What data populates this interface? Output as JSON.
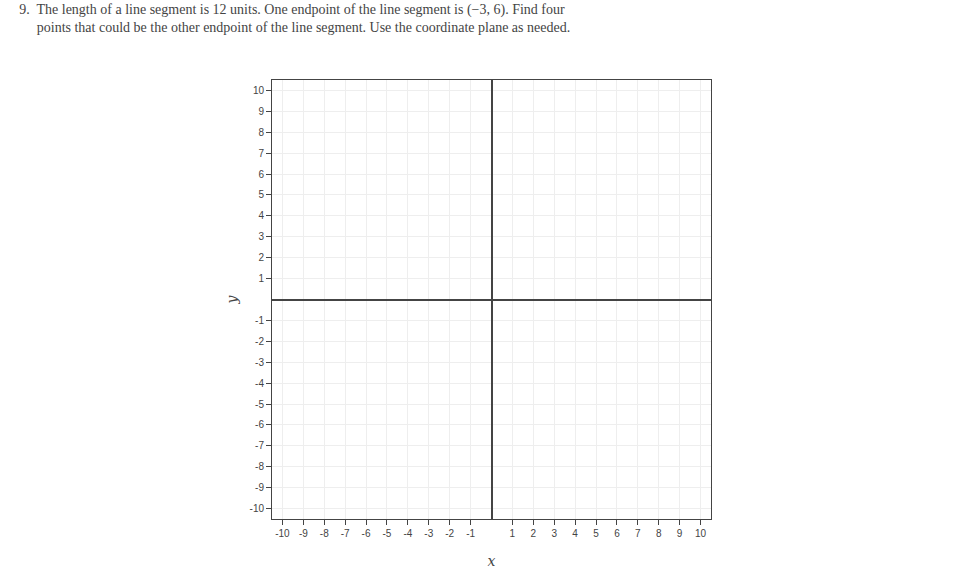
{
  "chart_data": {
    "type": "scatter",
    "title": "9.  The length of a line segment is 12 units. One endpoint of the line segment is (−3, 6). Find four\n     points that could be the other endpoint of the line segment. Use the coordinate plane as needed.",
    "xlabel": "x",
    "ylabel": "y",
    "series": [],
    "xlim": [
      -10.5,
      10.5
    ],
    "ylim": [
      -10.5,
      10.5
    ],
    "xticks": [
      -10,
      -9,
      -8,
      -7,
      -6,
      -5,
      -4,
      -3,
      -2,
      -1,
      1,
      2,
      3,
      4,
      5,
      6,
      7,
      8,
      9,
      10
    ],
    "yticks": [
      -10,
      -9,
      -8,
      -7,
      -6,
      -5,
      -4,
      -3,
      -2,
      -1,
      1,
      2,
      3,
      4,
      5,
      6,
      7,
      8,
      9,
      10
    ],
    "grid": true
  }
}
